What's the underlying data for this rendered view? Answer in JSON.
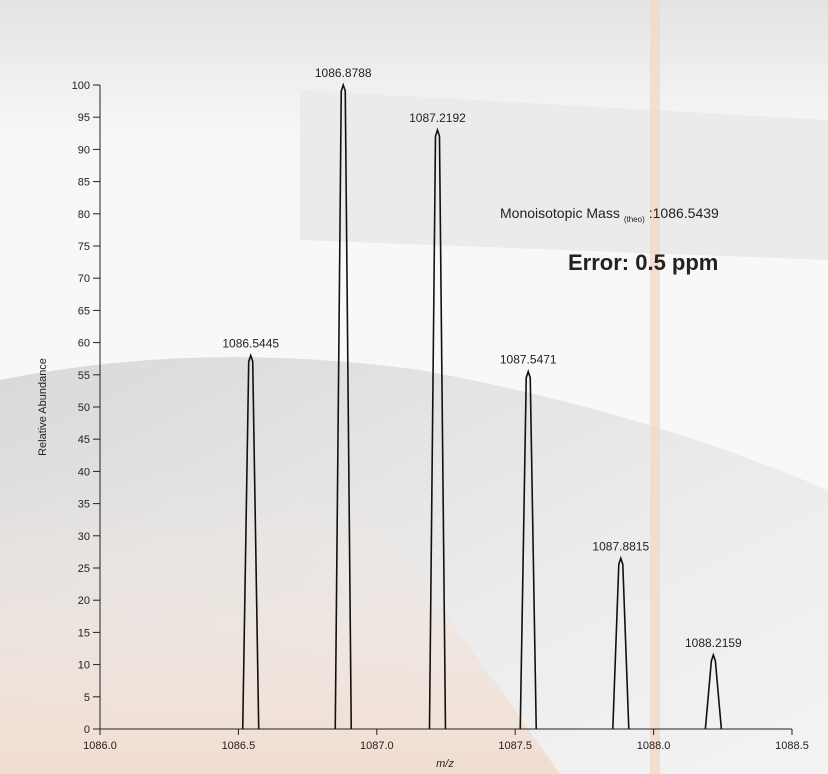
{
  "chart_data": {
    "type": "spectrum",
    "x_label": "m/z",
    "y_label": "Relative Abundance",
    "x": [
      1086.5445,
      1086.8788,
      1087.2192,
      1087.5471,
      1087.8815,
      1088.2159
    ],
    "values": [
      58,
      100,
      93,
      55.5,
      26.5,
      11.5
    ],
    "color": "#111111",
    "xlim": [
      1086.0,
      1088.5
    ],
    "xticks": [
      {
        "value": 1086.0,
        "label": "1086.0"
      },
      1086.5,
      {
        "value": 1087.0,
        "label": "1087.0"
      },
      1087.5,
      {
        "value": 1088.0,
        "label": "1088.0"
      },
      1088.5
    ],
    "ylim": [
      0,
      100
    ],
    "yticks": [
      0,
      5,
      10,
      15,
      20,
      25,
      30,
      35,
      40,
      45,
      50,
      55,
      60,
      65,
      70,
      75,
      80,
      85,
      90,
      95,
      100
    ],
    "grid": false,
    "annotations": {
      "mass_label": "Monoisotopic Mass",
      "mass_subscript": "(theo)",
      "mass_value": ":1086.5439",
      "error": "Error: 0.5 ppm"
    }
  }
}
